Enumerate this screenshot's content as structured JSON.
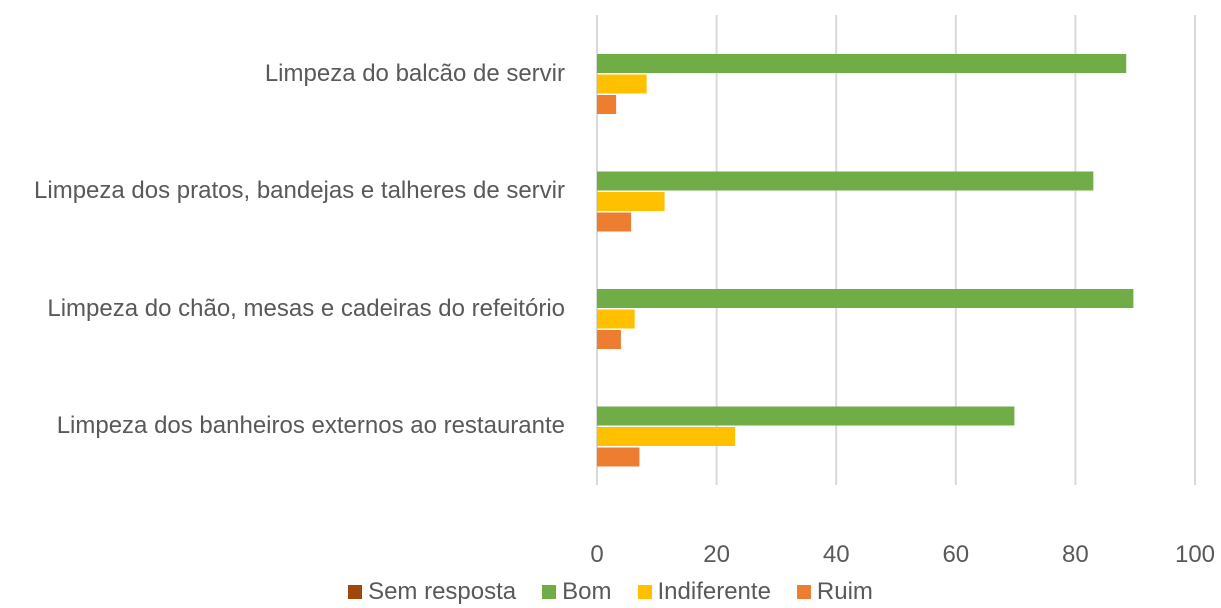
{
  "chart_data": {
    "type": "barh",
    "categories": [
      "Limpeza do balcão de servir",
      "Limpeza dos pratos, bandejas e talheres de servir",
      "Limpeza do chão, mesas e cadeiras do refeitório",
      "Limpeza dos banheiros externos ao restaurante"
    ],
    "series": [
      {
        "name": "Sem resposta",
        "color": "#9e480e",
        "values": [
          0,
          0,
          0,
          0
        ]
      },
      {
        "name": "Bom",
        "color": "#70ad47",
        "values": [
          88.5,
          83,
          89.7,
          69.8
        ]
      },
      {
        "name": "Indiferente",
        "color": "#ffc000",
        "values": [
          8.3,
          11.3,
          6.3,
          23.1
        ]
      },
      {
        "name": "Ruim",
        "color": "#ed7d31",
        "values": [
          3.2,
          5.7,
          4,
          7.1
        ]
      }
    ],
    "xlim": [
      0,
      100
    ],
    "xticks": [
      0,
      20,
      40,
      60,
      80,
      100
    ],
    "grid": true,
    "legend": "bottom"
  }
}
